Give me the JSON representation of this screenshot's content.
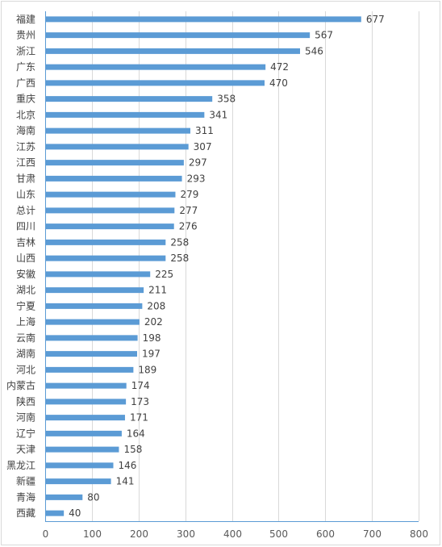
{
  "chart_data": {
    "type": "bar",
    "orientation": "horizontal",
    "categories": [
      "福建",
      "贵州",
      "浙江",
      "广东",
      "广西",
      "重庆",
      "北京",
      "海南",
      "江苏",
      "江西",
      "甘肃",
      "山东",
      "总计",
      "四川",
      "吉林",
      "山西",
      "安徽",
      "湖北",
      "宁夏",
      "上海",
      "云南",
      "湖南",
      "河北",
      "内蒙古",
      "陕西",
      "河南",
      "辽宁",
      "天津",
      "黑龙江",
      "新疆",
      "青海",
      "西藏"
    ],
    "values": [
      677,
      567,
      546,
      472,
      470,
      358,
      341,
      311,
      307,
      297,
      293,
      279,
      277,
      276,
      258,
      258,
      225,
      211,
      208,
      202,
      198,
      197,
      189,
      174,
      173,
      171,
      164,
      158,
      146,
      141,
      80,
      40
    ],
    "xlim": [
      0,
      800
    ],
    "xticks": [
      "0",
      "100",
      "200",
      "300",
      "400",
      "500",
      "600",
      "700",
      "800"
    ],
    "bar_color": "#5b9bd5",
    "grid": "vertical",
    "data_labels": true,
    "title": "",
    "xlabel": "",
    "ylabel": ""
  }
}
